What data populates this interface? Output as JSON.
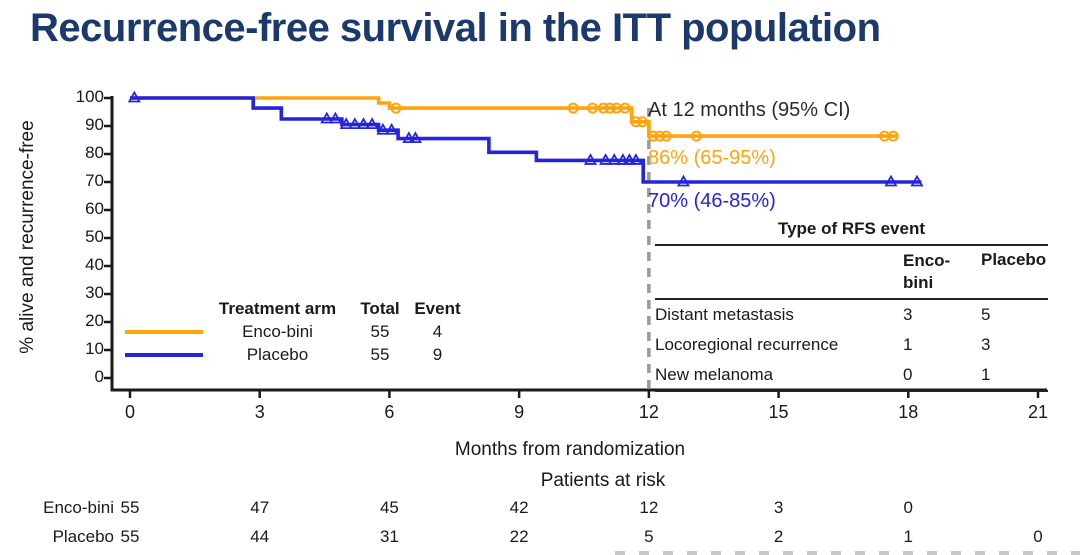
{
  "title": "Recurrence-free survival in the ITT population",
  "colors": {
    "title": "#1B3A6B",
    "axis": "#1a1a1a",
    "dashed": "#999999",
    "encobini": "#FFA40A",
    "placebo": "#2424DE"
  },
  "annotation": {
    "header": "At 12 months (95% CI)",
    "encobini_value": "86% (65-95%)",
    "placebo_value": "70% (46-85%)"
  },
  "legend": {
    "headers": [
      "Treatment arm",
      "Total",
      "Event"
    ],
    "rows": [
      {
        "name": "Enco-bini",
        "total": "55",
        "event": "4"
      },
      {
        "name": "Placebo",
        "total": "55",
        "event": "9"
      }
    ]
  },
  "rfs_table": {
    "title": "Type of RFS event",
    "columns": [
      "Enco-bini",
      "Placebo"
    ],
    "rows": [
      {
        "label": "Distant metastasis",
        "encobini": "3",
        "placebo": "5"
      },
      {
        "label": "Locoregional recurrence",
        "encobini": "1",
        "placebo": "3"
      },
      {
        "label": "New melanoma",
        "encobini": "0",
        "placebo": "1"
      }
    ]
  },
  "risk_table": {
    "title": "Patients at risk",
    "rows": [
      {
        "label": "Enco-bini",
        "values": [
          "55",
          "47",
          "45",
          "42",
          "12",
          "3",
          "0"
        ]
      },
      {
        "label": "Placebo",
        "values": [
          "55",
          "44",
          "31",
          "22",
          "5",
          "2",
          "1",
          "0"
        ]
      }
    ]
  },
  "chart_data": {
    "type": "line",
    "subtype": "kaplan-meier-step",
    "title": "Recurrence-free survival in the ITT population",
    "xlabel": "Months from randomization",
    "ylabel": "% alive and recurrence-free",
    "xlim": [
      0,
      21
    ],
    "ylim": [
      0,
      100
    ],
    "xticks": [
      0,
      3,
      6,
      9,
      12,
      15,
      18,
      21
    ],
    "yticks": [
      0,
      10,
      20,
      30,
      40,
      50,
      60,
      70,
      80,
      90,
      100
    ],
    "grid": false,
    "reference_line_x": 12,
    "legend_position": "lower-left-inside",
    "series": [
      {
        "name": "Enco-bini",
        "color": "#FFA40A",
        "marker": "circle",
        "total": 55,
        "events": 4,
        "estimate_at_12_months": "86% (65-95%)",
        "steps": [
          [
            0,
            100
          ],
          [
            5.75,
            100
          ],
          [
            5.75,
            98.2
          ],
          [
            6.0,
            98.2
          ],
          [
            6.0,
            96.4
          ],
          [
            11.6,
            96.4
          ],
          [
            11.6,
            91.5
          ],
          [
            12.0,
            91.5
          ],
          [
            12.0,
            86.4
          ],
          [
            17.75,
            86.4
          ]
        ],
        "censors": [
          [
            6.15,
            96.4
          ],
          [
            10.25,
            96.4
          ],
          [
            10.7,
            96.4
          ],
          [
            10.95,
            96.4
          ],
          [
            11.1,
            96.4
          ],
          [
            11.25,
            96.4
          ],
          [
            11.45,
            96.4
          ],
          [
            11.7,
            91.5
          ],
          [
            11.85,
            91.5
          ],
          [
            12.1,
            86.4
          ],
          [
            12.25,
            86.4
          ],
          [
            12.4,
            86.4
          ],
          [
            13.1,
            86.4
          ],
          [
            17.45,
            86.4
          ],
          [
            17.65,
            86.4
          ]
        ]
      },
      {
        "name": "Placebo",
        "color": "#2424DE",
        "marker": "triangle",
        "total": 55,
        "events": 9,
        "estimate_at_12_months": "70% (46-85%)",
        "steps": [
          [
            0,
            100
          ],
          [
            2.85,
            100
          ],
          [
            2.85,
            96.4
          ],
          [
            3.5,
            96.4
          ],
          [
            3.5,
            92.5
          ],
          [
            4.9,
            92.5
          ],
          [
            4.9,
            90.5
          ],
          [
            5.75,
            90.5
          ],
          [
            5.75,
            88.5
          ],
          [
            6.2,
            88.5
          ],
          [
            6.2,
            85.5
          ],
          [
            8.3,
            85.5
          ],
          [
            8.3,
            80.6
          ],
          [
            9.4,
            80.6
          ],
          [
            9.4,
            77.7
          ],
          [
            11.87,
            77.7
          ],
          [
            11.87,
            70
          ],
          [
            18.3,
            70
          ]
        ],
        "censors": [
          [
            0.1,
            100
          ],
          [
            4.55,
            92.5
          ],
          [
            4.75,
            92.5
          ],
          [
            5.0,
            90.5
          ],
          [
            5.2,
            90.5
          ],
          [
            5.4,
            90.5
          ],
          [
            5.6,
            90.5
          ],
          [
            5.85,
            88.5
          ],
          [
            6.05,
            88.5
          ],
          [
            6.45,
            85.5
          ],
          [
            6.6,
            85.5
          ],
          [
            10.65,
            77.7
          ],
          [
            11.0,
            77.7
          ],
          [
            11.2,
            77.7
          ],
          [
            11.4,
            77.7
          ],
          [
            11.55,
            77.7
          ],
          [
            11.7,
            77.7
          ],
          [
            12.8,
            70
          ],
          [
            17.6,
            70
          ],
          [
            18.2,
            70
          ]
        ]
      }
    ]
  }
}
